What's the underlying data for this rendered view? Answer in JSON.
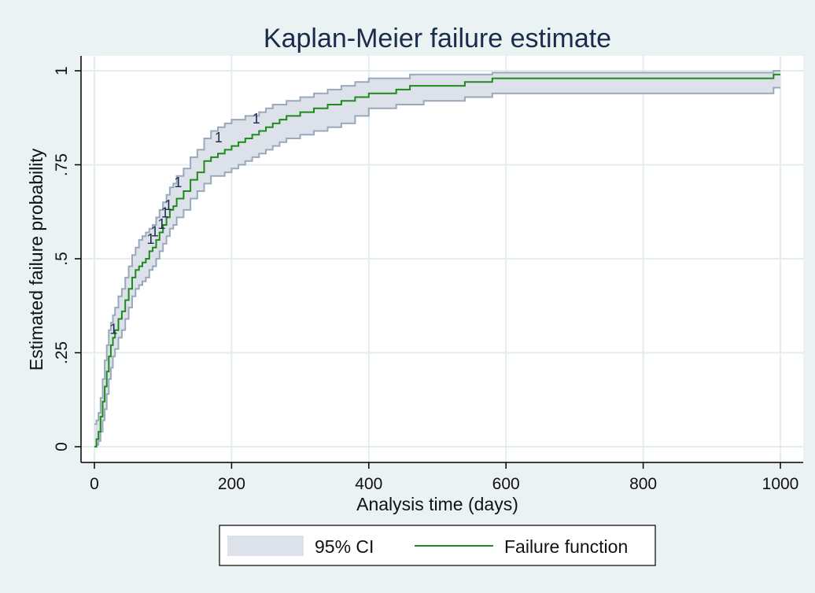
{
  "chart_data": {
    "type": "line",
    "title": "Kaplan-Meier failure estimate",
    "xlabel": "Analysis time (days)",
    "ylabel": "Estimated failure probability",
    "xlim": [
      0,
      1000
    ],
    "ylim": [
      0,
      1
    ],
    "x_ticks": [
      {
        "value": 0,
        "label": "0"
      },
      {
        "value": 200,
        "label": "200"
      },
      {
        "value": 400,
        "label": "400"
      },
      {
        "value": 600,
        "label": "600"
      },
      {
        "value": 800,
        "label": "800"
      },
      {
        "value": 1000,
        "label": "1000"
      }
    ],
    "y_ticks": [
      {
        "value": 0,
        "label": "0"
      },
      {
        "value": 0.25,
        "label": ".25"
      },
      {
        "value": 0.5,
        "label": ".5"
      },
      {
        "value": 0.75,
        "label": ".75"
      },
      {
        "value": 1,
        "label": "1"
      }
    ],
    "grid": true,
    "legend_position": "bottom",
    "colors": {
      "background": "#eaf2f3",
      "plot_background": "#ffffff",
      "grid": "#e3ecee",
      "ci_fill": "#dde2ea",
      "ci_edge": "#9aa8bc",
      "line": "#1e8a1e",
      "title": "#1a2b4c"
    },
    "series": [
      {
        "name": "Failure function",
        "style": "step-line",
        "x": [
          0,
          3,
          6,
          9,
          12,
          15,
          18,
          21,
          24,
          27,
          30,
          35,
          40,
          45,
          50,
          55,
          60,
          65,
          70,
          75,
          80,
          85,
          90,
          95,
          100,
          105,
          110,
          115,
          120,
          130,
          140,
          150,
          160,
          170,
          180,
          190,
          200,
          210,
          220,
          230,
          240,
          250,
          260,
          270,
          280,
          300,
          320,
          340,
          360,
          380,
          400,
          420,
          440,
          460,
          480,
          500,
          520,
          540,
          560,
          580,
          600,
          620,
          650,
          700,
          800,
          900,
          990,
          1000
        ],
        "y": [
          0.0,
          0.02,
          0.04,
          0.08,
          0.12,
          0.16,
          0.2,
          0.24,
          0.27,
          0.29,
          0.31,
          0.34,
          0.36,
          0.39,
          0.42,
          0.45,
          0.47,
          0.48,
          0.49,
          0.5,
          0.52,
          0.53,
          0.55,
          0.57,
          0.59,
          0.61,
          0.63,
          0.64,
          0.66,
          0.68,
          0.71,
          0.73,
          0.76,
          0.77,
          0.78,
          0.79,
          0.8,
          0.81,
          0.82,
          0.83,
          0.84,
          0.85,
          0.86,
          0.87,
          0.88,
          0.89,
          0.9,
          0.91,
          0.92,
          0.93,
          0.94,
          0.94,
          0.95,
          0.96,
          0.96,
          0.96,
          0.96,
          0.97,
          0.97,
          0.98,
          0.98,
          0.98,
          0.98,
          0.98,
          0.98,
          0.98,
          0.99,
          0.99
        ]
      },
      {
        "name": "95% CI",
        "style": "band",
        "x": [
          0,
          3,
          6,
          9,
          12,
          15,
          18,
          21,
          24,
          27,
          30,
          35,
          40,
          45,
          50,
          55,
          60,
          65,
          70,
          75,
          80,
          85,
          90,
          95,
          100,
          105,
          110,
          115,
          120,
          130,
          140,
          150,
          160,
          170,
          180,
          190,
          200,
          210,
          220,
          230,
          240,
          250,
          260,
          270,
          280,
          300,
          320,
          340,
          360,
          380,
          400,
          420,
          440,
          460,
          480,
          500,
          520,
          540,
          560,
          580,
          600,
          620,
          650,
          700,
          800,
          900,
          990,
          1000
        ],
        "lower": [
          0.0,
          0.005,
          0.015,
          0.04,
          0.07,
          0.1,
          0.14,
          0.18,
          0.21,
          0.24,
          0.26,
          0.29,
          0.31,
          0.34,
          0.37,
          0.4,
          0.42,
          0.43,
          0.44,
          0.45,
          0.47,
          0.48,
          0.5,
          0.52,
          0.54,
          0.56,
          0.58,
          0.59,
          0.61,
          0.63,
          0.66,
          0.68,
          0.7,
          0.72,
          0.72,
          0.73,
          0.74,
          0.75,
          0.76,
          0.77,
          0.78,
          0.79,
          0.8,
          0.81,
          0.82,
          0.83,
          0.84,
          0.85,
          0.86,
          0.88,
          0.9,
          0.9,
          0.91,
          0.91,
          0.92,
          0.92,
          0.92,
          0.93,
          0.93,
          0.94,
          0.94,
          0.94,
          0.94,
          0.94,
          0.94,
          0.94,
          0.955,
          0.955
        ],
        "upper": [
          0.06,
          0.07,
          0.09,
          0.13,
          0.18,
          0.23,
          0.27,
          0.31,
          0.33,
          0.35,
          0.37,
          0.4,
          0.42,
          0.45,
          0.48,
          0.51,
          0.53,
          0.55,
          0.56,
          0.57,
          0.58,
          0.59,
          0.61,
          0.63,
          0.65,
          0.67,
          0.69,
          0.7,
          0.72,
          0.74,
          0.77,
          0.79,
          0.82,
          0.84,
          0.85,
          0.86,
          0.87,
          0.87,
          0.88,
          0.88,
          0.89,
          0.9,
          0.91,
          0.91,
          0.92,
          0.93,
          0.94,
          0.95,
          0.96,
          0.97,
          0.98,
          0.98,
          0.98,
          0.99,
          0.99,
          0.99,
          0.99,
          0.99,
          0.99,
          0.995,
          0.995,
          0.995,
          0.995,
          0.995,
          0.995,
          0.995,
          1.0,
          1.0
        ]
      }
    ],
    "annotations": [
      {
        "text": "1",
        "x": 28,
        "y": 0.3
      },
      {
        "text": "1",
        "x": 82,
        "y": 0.54
      },
      {
        "text": "1",
        "x": 88,
        "y": 0.56
      },
      {
        "text": "1",
        "x": 98,
        "y": 0.58
      },
      {
        "text": "1",
        "x": 103,
        "y": 0.61
      },
      {
        "text": "1",
        "x": 108,
        "y": 0.63
      },
      {
        "text": "1",
        "x": 122,
        "y": 0.69
      },
      {
        "text": "1",
        "x": 181,
        "y": 0.81
      },
      {
        "text": "1",
        "x": 236,
        "y": 0.86
      }
    ],
    "legend": [
      {
        "label": "95% CI",
        "kind": "band"
      },
      {
        "label": "Failure function",
        "kind": "line"
      }
    ]
  }
}
